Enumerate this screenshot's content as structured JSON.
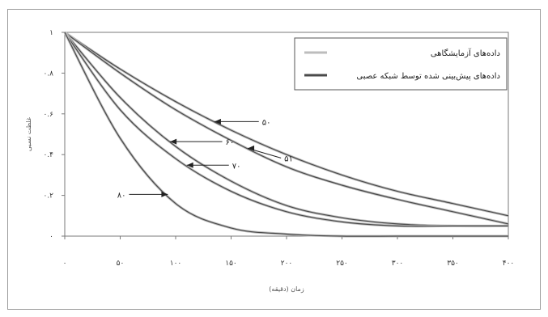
{
  "chart_data": {
    "type": "line",
    "title": "",
    "xlabel": "زمان (دقیقه)",
    "ylabel": "غلظت نسبی",
    "xlim": [
      0,
      400
    ],
    "ylim": [
      0,
      1
    ],
    "x_ticks": [
      "۰",
      "۵۰",
      "۱۰۰",
      "۱۵۰",
      "۲۰۰",
      "۲۵۰",
      "۳۰۰",
      "۳۵۰",
      "۴۰۰"
    ],
    "y_ticks": [
      "۰",
      "۰.۲",
      "۰.۴",
      "۰.۶",
      "۰.۸",
      "۱"
    ],
    "legend": {
      "position": "top-right",
      "entries": [
        {
          "label": "داده‌های آزمایشگاهی",
          "color": "#bdbdbd"
        },
        {
          "label": "داده‌های پیش‌بینی شده توسط شبکه عصبی",
          "color": "#4a4a4a"
        }
      ]
    },
    "series": [
      {
        "label": "۵۰",
        "x": [
          0,
          50,
          100,
          150,
          200,
          250,
          300,
          350,
          400
        ],
        "y": [
          1.0,
          0.82,
          0.66,
          0.52,
          0.4,
          0.3,
          0.22,
          0.16,
          0.1
        ]
      },
      {
        "label": "۵۱",
        "x": [
          0,
          50,
          100,
          150,
          200,
          250,
          300,
          350,
          400
        ],
        "y": [
          1.0,
          0.8,
          0.62,
          0.47,
          0.34,
          0.25,
          0.18,
          0.12,
          0.06
        ]
      },
      {
        "label": "۶۰",
        "x": [
          0,
          50,
          100,
          150,
          200,
          250,
          300,
          350,
          400
        ],
        "y": [
          1.0,
          0.68,
          0.44,
          0.27,
          0.15,
          0.09,
          0.06,
          0.05,
          0.05
        ]
      },
      {
        "label": "۷۰",
        "x": [
          0,
          50,
          100,
          150,
          200,
          250,
          300,
          350,
          400
        ],
        "y": [
          1.0,
          0.62,
          0.38,
          0.22,
          0.12,
          0.07,
          0.05,
          0.05,
          0.05
        ]
      },
      {
        "label": "۸۰",
        "x": [
          0,
          50,
          100,
          150,
          200,
          250,
          300,
          350,
          400
        ],
        "y": [
          1.0,
          0.48,
          0.16,
          0.04,
          0.01,
          0.0,
          0.0,
          0.0,
          0.0
        ]
      }
    ]
  }
}
